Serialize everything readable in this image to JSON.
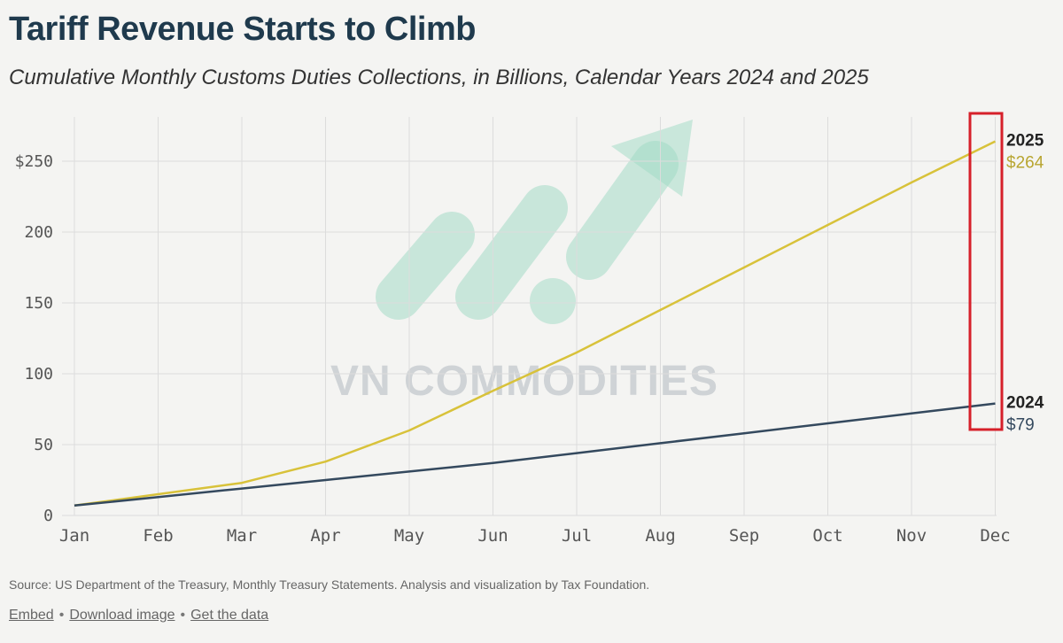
{
  "header": {
    "title": "Tariff Revenue Starts to Climb",
    "subtitle": "Cumulative Monthly Customs Duties Collections, in Billions, Calendar Years 2024 and 2025"
  },
  "chart_data": {
    "type": "line",
    "x": [
      "Jan",
      "Feb",
      "Mar",
      "Apr",
      "May",
      "Jun",
      "Jul",
      "Aug",
      "Sep",
      "Oct",
      "Nov",
      "Dec"
    ],
    "y_ticks": [
      "$250",
      "200",
      "150",
      "100",
      "50",
      "0"
    ],
    "y_tick_values": [
      250,
      200,
      150,
      100,
      50,
      0
    ],
    "ylim": [
      0,
      270
    ],
    "grid": true,
    "series": [
      {
        "name": "2025",
        "end_label": "$264",
        "color": "#d8c23a",
        "values": [
          7,
          15,
          23,
          38,
          60,
          88,
          115,
          145,
          175,
          205,
          235,
          264
        ]
      },
      {
        "name": "2024",
        "end_label": "$79",
        "color": "#34495e",
        "values": [
          7,
          13,
          19,
          25,
          31,
          37,
          44,
          51,
          58,
          65,
          72,
          79
        ]
      }
    ],
    "highlight_color": "#d6202a",
    "watermark": {
      "text": "VN COMMODITIES",
      "color": "#cfd3d6",
      "logo_color": "#9ed9c4"
    }
  },
  "footer": {
    "source": "Source: US Department of the Treasury, Monthly Treasury Statements. Analysis and visualization by Tax Foundation.",
    "embed": "Embed",
    "download": "Download image",
    "get_data": "Get the data",
    "separator": "•"
  }
}
